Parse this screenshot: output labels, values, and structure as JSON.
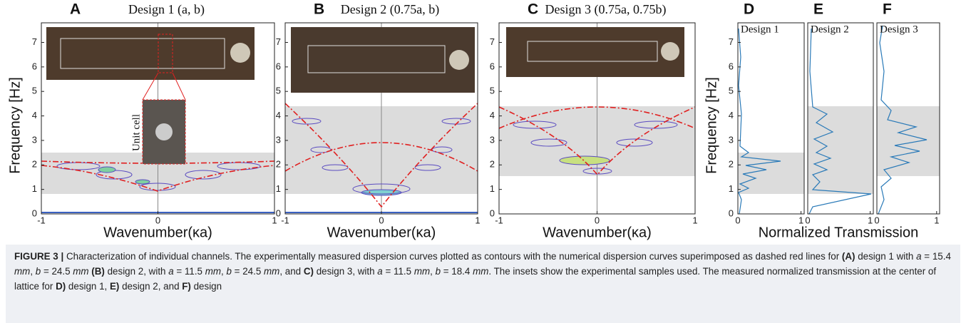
{
  "panels": [
    {
      "letter": "A",
      "title": "Design 1 (a, b)",
      "inset_label": "Unit cell",
      "x_label": "Wavenumber(κa)",
      "y_label": "Frequency [Hz]",
      "xlim": [
        -1,
        1
      ],
      "ylim": [
        0,
        7.8
      ],
      "xticks": [
        -1,
        0,
        1
      ],
      "yticks": [
        0,
        1,
        2,
        3,
        4,
        5,
        6,
        7
      ]
    },
    {
      "letter": "B",
      "title": "Design 2 (0.75a, b)",
      "x_label": "Wavenumber(κa)",
      "xlim": [
        -1,
        1
      ],
      "ylim": [
        0,
        7.8
      ],
      "xticks": [
        -1,
        0,
        1
      ],
      "yticks": [
        0,
        1,
        2,
        3,
        4,
        5,
        6,
        7
      ]
    },
    {
      "letter": "C",
      "title": "Design 3 (0.75a, 0.75b)",
      "x_label": "Wavenumber(κa)",
      "xlim": [
        -1,
        1
      ],
      "ylim": [
        0,
        7.8
      ],
      "xticks": [
        -1,
        0,
        1
      ],
      "yticks": [
        0,
        1,
        2,
        3,
        4,
        5,
        6,
        7
      ]
    },
    {
      "letter": "D",
      "label": "Design 1",
      "y_label": "Frequency [Hz]",
      "xlim": [
        0,
        1.05
      ],
      "ylim": [
        0,
        7.8
      ],
      "xticks": [
        0,
        1
      ],
      "yticks": [
        0,
        1,
        2,
        3,
        4,
        5,
        6,
        7
      ]
    },
    {
      "letter": "E",
      "label": "Design 2",
      "xlim": [
        0,
        1.05
      ],
      "ylim": [
        0,
        7.8
      ],
      "xticks": [
        0,
        1
      ]
    },
    {
      "letter": "F",
      "label": "Design 3",
      "xlim": [
        0,
        1.05
      ],
      "ylim": [
        0,
        7.8
      ],
      "xticks": [
        0,
        1
      ]
    }
  ],
  "shared_x_label": "Normalized Transmission",
  "caption": {
    "parts": [
      {
        "text": "FIGURE 3 |",
        "style": "bold"
      },
      {
        "text": " Characterization of individual channels. The experimentally measured dispersion curves plotted as contours with the numerical dispersion curves superimposed as dashed red lines for ",
        "style": "plain"
      },
      {
        "text": "(A)",
        "style": "bold"
      },
      {
        "text": " design 1 with ",
        "style": "plain"
      },
      {
        "text": "a",
        "style": "italic"
      },
      {
        "text": " = 15.4 ",
        "style": "plain"
      },
      {
        "text": "mm",
        "style": "italic"
      },
      {
        "text": ", ",
        "style": "plain"
      },
      {
        "text": "b",
        "style": "italic"
      },
      {
        "text": " = 24.5 ",
        "style": "plain"
      },
      {
        "text": "mm",
        "style": "italic"
      },
      {
        "text": " (B)",
        "style": "bold"
      },
      {
        "text": " design 2, with ",
        "style": "plain"
      },
      {
        "text": "a",
        "style": "italic"
      },
      {
        "text": " = 11.5 ",
        "style": "plain"
      },
      {
        "text": "mm",
        "style": "italic"
      },
      {
        "text": ", ",
        "style": "plain"
      },
      {
        "text": "b",
        "style": "italic"
      },
      {
        "text": " = 24.5 ",
        "style": "plain"
      },
      {
        "text": "mm",
        "style": "italic"
      },
      {
        "text": ", and ",
        "style": "plain"
      },
      {
        "text": "C)",
        "style": "bold"
      },
      {
        "text": " design 3, with ",
        "style": "plain"
      },
      {
        "text": "a",
        "style": "italic"
      },
      {
        "text": " = 11.5 ",
        "style": "plain"
      },
      {
        "text": "mm",
        "style": "italic"
      },
      {
        "text": ", ",
        "style": "plain"
      },
      {
        "text": "b",
        "style": "italic"
      },
      {
        "text": " = 18.4 ",
        "style": "plain"
      },
      {
        "text": "mm",
        "style": "italic"
      },
      {
        "text": ". The insets show the experimental samples used. The measured normalized transmission at the center of lattice for ",
        "style": "plain"
      },
      {
        "text": "D)",
        "style": "bold"
      },
      {
        "text": " design 1, ",
        "style": "plain"
      },
      {
        "text": "E)",
        "style": "bold"
      },
      {
        "text": " design 2, and ",
        "style": "plain"
      },
      {
        "text": "F)",
        "style": "bold"
      },
      {
        "text": " design",
        "style": "plain"
      }
    ]
  }
}
